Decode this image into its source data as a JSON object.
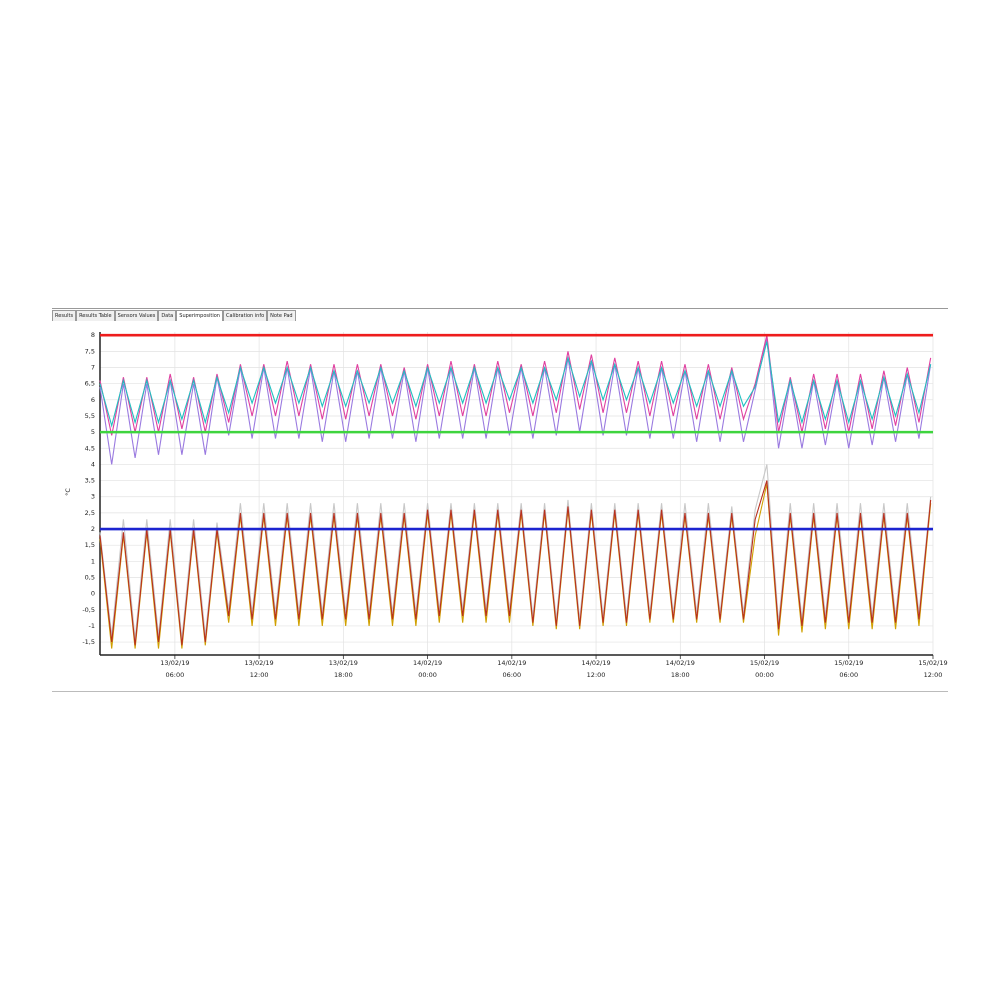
{
  "tabs": [
    "Results",
    "Results Table",
    "Sensors Values",
    "Data",
    "Superimposition",
    "Calibration info",
    "Note Pad"
  ],
  "active_tab": 4,
  "chart_data": {
    "type": "line",
    "y_label": "°C",
    "xlim": [
      "13/02/19 00:40",
      "15/02/19 12:00"
    ],
    "xticks": [
      "13/02/19\n06:00",
      "13/02/19\n12:00",
      "13/02/19\n18:00",
      "14/02/19\n00:00",
      "14/02/19\n06:00",
      "14/02/19\n12:00",
      "14/02/19\n18:00",
      "15/02/19\n00:00",
      "15/02/19\n06:00",
      "15/02/19\n12:00"
    ],
    "ylim": [
      -1.9,
      8.1
    ],
    "yticks": [
      {
        "value": -1.5,
        "label": "-1,5"
      },
      -1,
      {
        "value": -0.5,
        "label": "-0,5"
      },
      0,
      {
        "value": 0.5,
        "label": "0,5"
      },
      1,
      {
        "value": 1.5,
        "label": "1,5"
      },
      2,
      {
        "value": 2.5,
        "label": "2,5"
      },
      3,
      {
        "value": 3.5,
        "label": "3,5"
      },
      4,
      {
        "value": 4.5,
        "label": "4,5"
      },
      5,
      {
        "value": 5.5,
        "label": "5,5"
      },
      6,
      {
        "value": 6.5,
        "label": "6,5"
      },
      7,
      {
        "value": 7.5,
        "label": "7,5"
      },
      8
    ],
    "grid": true,
    "thresholds": [
      {
        "value": 8,
        "color": "#ee1c1c"
      },
      {
        "value": 5,
        "color": "#3ed43e"
      },
      {
        "value": 2,
        "color": "#1c24d0"
      }
    ],
    "x": [
      "13/02/19 00:40",
      "13/02/19 01:30",
      "13/02/19 02:20",
      "13/02/19 03:10",
      "13/02/19 04:00",
      "13/02/19 04:50",
      "13/02/19 05:40",
      "13/02/19 06:30",
      "13/02/19 07:20",
      "13/02/19 08:10",
      "13/02/19 09:00",
      "13/02/19 09:50",
      "13/02/19 10:40",
      "13/02/19 11:30",
      "13/02/19 12:20",
      "13/02/19 13:10",
      "13/02/19 14:00",
      "13/02/19 14:50",
      "13/02/19 15:40",
      "13/02/19 16:30",
      "13/02/19 17:20",
      "13/02/19 18:10",
      "13/02/19 19:00",
      "13/02/19 19:50",
      "13/02/19 20:40",
      "13/02/19 21:30",
      "13/02/19 22:20",
      "13/02/19 23:10",
      "14/02/19 00:00",
      "14/02/19 00:50",
      "14/02/19 01:40",
      "14/02/19 02:30",
      "14/02/19 03:20",
      "14/02/19 04:10",
      "14/02/19 05:00",
      "14/02/19 05:50",
      "14/02/19 06:40",
      "14/02/19 07:30",
      "14/02/19 08:20",
      "14/02/19 09:10",
      "14/02/19 10:00",
      "14/02/19 10:50",
      "14/02/19 11:40",
      "14/02/19 12:30",
      "14/02/19 13:20",
      "14/02/19 14:10",
      "14/02/19 15:00",
      "14/02/19 15:50",
      "14/02/19 16:40",
      "14/02/19 17:30",
      "14/02/19 18:20",
      "14/02/19 19:10",
      "14/02/19 20:00",
      "14/02/19 20:50",
      "14/02/19 21:40",
      "14/02/19 22:30",
      "14/02/19 23:20",
      "15/02/19 00:10",
      "15/02/19 01:00",
      "15/02/19 01:50",
      "15/02/19 02:40",
      "15/02/19 03:30",
      "15/02/19 04:20",
      "15/02/19 05:10",
      "15/02/19 06:00",
      "15/02/19 06:50",
      "15/02/19 07:40",
      "15/02/19 08:30",
      "15/02/19 09:20",
      "15/02/19 10:10",
      "15/02/19 11:00",
      "15/02/19 11:50"
    ],
    "series": [
      {
        "color": "#9a7ae0",
        "values": [
          6.4,
          4.0,
          6.5,
          4.2,
          6.5,
          4.3,
          6.6,
          4.3,
          6.5,
          4.3,
          6.7,
          4.9,
          7.0,
          4.8,
          7.0,
          4.8,
          7.0,
          4.8,
          7.0,
          4.7,
          6.9,
          4.7,
          6.9,
          4.8,
          7.0,
          4.8,
          6.9,
          4.7,
          7.0,
          4.8,
          7.0,
          4.8,
          7.0,
          4.8,
          7.0,
          4.9,
          7.0,
          4.8,
          7.0,
          4.9,
          7.3,
          5.0,
          7.2,
          4.9,
          7.1,
          4.9,
          7.0,
          4.8,
          7.0,
          4.8,
          6.9,
          4.7,
          6.9,
          4.7,
          6.9,
          4.7,
          6.3,
          7.9,
          4.5,
          6.6,
          4.5,
          6.6,
          4.6,
          6.6,
          4.5,
          6.6,
          4.6,
          6.7,
          4.7,
          6.8,
          4.8,
          7.1
        ]
      },
      {
        "color": "#e040a0",
        "values": [
          6.6,
          4.9,
          6.7,
          5.0,
          6.7,
          5.0,
          6.8,
          5.1,
          6.7,
          5.0,
          6.8,
          5.3,
          7.1,
          5.5,
          7.1,
          5.5,
          7.2,
          5.5,
          7.1,
          5.4,
          7.1,
          5.4,
          7.1,
          5.5,
          7.1,
          5.5,
          7.0,
          5.4,
          7.1,
          5.5,
          7.2,
          5.5,
          7.1,
          5.5,
          7.2,
          5.6,
          7.1,
          5.5,
          7.2,
          5.6,
          7.5,
          5.7,
          7.4,
          5.6,
          7.3,
          5.6,
          7.2,
          5.5,
          7.2,
          5.5,
          7.1,
          5.4,
          7.1,
          5.4,
          7.0,
          5.4,
          6.5,
          8.0,
          5.0,
          6.7,
          5.0,
          6.8,
          5.1,
          6.8,
          5.0,
          6.8,
          5.1,
          6.9,
          5.2,
          7.0,
          5.3,
          7.3
        ]
      },
      {
        "color": "#20c0c0",
        "values": [
          6.5,
          5.2,
          6.6,
          5.3,
          6.6,
          5.3,
          6.6,
          5.4,
          6.6,
          5.3,
          6.7,
          5.6,
          7.0,
          5.9,
          7.0,
          5.9,
          7.0,
          5.9,
          7.0,
          5.8,
          6.9,
          5.8,
          6.9,
          5.9,
          7.0,
          5.9,
          6.9,
          5.8,
          7.0,
          5.9,
          7.0,
          5.9,
          7.0,
          5.9,
          7.0,
          6.0,
          7.0,
          5.9,
          7.0,
          6.0,
          7.3,
          6.1,
          7.2,
          6.0,
          7.1,
          6.0,
          7.0,
          5.9,
          7.0,
          5.9,
          6.9,
          5.8,
          6.9,
          5.8,
          6.9,
          5.8,
          6.4,
          7.8,
          5.3,
          6.6,
          5.3,
          6.6,
          5.4,
          6.6,
          5.3,
          6.6,
          5.4,
          6.7,
          5.5,
          6.8,
          5.6,
          7.1
        ]
      },
      {
        "color": "#c8c8c8",
        "values": [
          1.9,
          -1.3,
          2.3,
          -1.4,
          2.3,
          -1.3,
          2.3,
          -1.4,
          2.3,
          -1.3,
          2.2,
          -0.5,
          2.8,
          -0.6,
          2.8,
          -0.6,
          2.8,
          -0.6,
          2.8,
          -0.6,
          2.8,
          -0.6,
          2.8,
          -0.6,
          2.8,
          -0.6,
          2.8,
          -0.6,
          2.8,
          -0.5,
          2.8,
          -0.5,
          2.8,
          -0.5,
          2.8,
          -0.5,
          2.8,
          -0.7,
          2.8,
          -0.8,
          2.9,
          -0.8,
          2.8,
          -0.7,
          2.8,
          -0.7,
          2.8,
          -0.6,
          2.8,
          -0.6,
          2.8,
          -0.6,
          2.8,
          -0.6,
          2.7,
          -0.6,
          2.6,
          4.0,
          -0.9,
          2.8,
          -0.8,
          2.8,
          -0.7,
          2.8,
          -0.7,
          2.8,
          -0.7,
          2.8,
          -0.7,
          2.8,
          -0.6,
          3.0
        ]
      },
      {
        "color": "#d0a000",
        "values": [
          1.7,
          -1.7,
          1.8,
          -1.7,
          1.9,
          -1.7,
          1.9,
          -1.7,
          1.9,
          -1.6,
          1.9,
          -0.9,
          2.4,
          -1.0,
          2.4,
          -1.0,
          2.4,
          -1.0,
          2.4,
          -1.0,
          2.4,
          -1.0,
          2.4,
          -1.0,
          2.4,
          -1.0,
          2.4,
          -1.0,
          2.5,
          -0.9,
          2.5,
          -0.9,
          2.5,
          -0.9,
          2.5,
          -0.9,
          2.5,
          -1.0,
          2.5,
          -1.1,
          2.6,
          -1.1,
          2.5,
          -1.0,
          2.5,
          -1.0,
          2.5,
          -0.9,
          2.5,
          -0.9,
          2.4,
          -0.9,
          2.4,
          -0.9,
          2.4,
          -0.9,
          1.8,
          3.4,
          -1.3,
          2.4,
          -1.2,
          2.4,
          -1.1,
          2.4,
          -1.1,
          2.4,
          -1.1,
          2.4,
          -1.1,
          2.4,
          -1.0,
          2.8
        ]
      },
      {
        "color": "#b83020",
        "values": [
          1.8,
          -1.5,
          1.9,
          -1.6,
          2.0,
          -1.5,
          2.0,
          -1.6,
          2.0,
          -1.5,
          2.0,
          -0.7,
          2.5,
          -0.8,
          2.5,
          -0.8,
          2.5,
          -0.8,
          2.5,
          -0.8,
          2.5,
          -0.8,
          2.5,
          -0.8,
          2.5,
          -0.8,
          2.5,
          -0.8,
          2.6,
          -0.7,
          2.6,
          -0.7,
          2.6,
          -0.7,
          2.6,
          -0.7,
          2.6,
          -0.9,
          2.6,
          -1.0,
          2.7,
          -1.0,
          2.6,
          -0.9,
          2.6,
          -0.9,
          2.6,
          -0.8,
          2.6,
          -0.8,
          2.5,
          -0.8,
          2.5,
          -0.8,
          2.5,
          -0.8,
          2.3,
          3.5,
          -1.1,
          2.5,
          -1.0,
          2.5,
          -0.9,
          2.5,
          -0.9,
          2.5,
          -0.9,
          2.5,
          -0.9,
          2.5,
          -0.8,
          2.9
        ]
      }
    ]
  }
}
